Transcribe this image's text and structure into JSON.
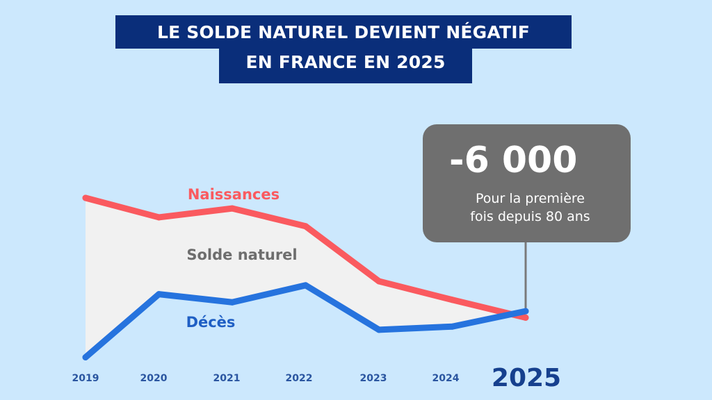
{
  "title": {
    "line1": "LE SOLDE NATUREL DEVIENT NÉGATIF",
    "line2": "EN FRANCE EN 2025"
  },
  "callout": {
    "value": "-6 000",
    "text_line1": "Pour la première",
    "text_line2": "fois depuis 80 ans"
  },
  "colors": {
    "background": "#cce8fd",
    "title_bg": "#0a2e7a",
    "naissances": "#fa5a5f",
    "deces": "#2673de",
    "area_fill": "#f1f1f1",
    "callout_bg": "#6f6f6f",
    "tick": "#2a55a0",
    "solde_label": "#6e6e6e"
  },
  "chart_data": {
    "type": "line",
    "title": "LE SOLDE NATUREL DEVIENT NÉGATIF EN FRANCE EN 2025",
    "xlabel": "",
    "ylabel": "",
    "x": [
      "2019",
      "2020",
      "2021",
      "2022",
      "2023",
      "2024",
      "2025"
    ],
    "highlight_x": "2025",
    "y_unit_note": "relative index (no y-axis shown); 2025 gap = -6 000",
    "ylim": [
      0,
      100
    ],
    "grid": false,
    "series": [
      {
        "name": "Naissances",
        "color": "#fa5a5f",
        "values": [
          100,
          88,
          93.5,
          82.5,
          48.5,
          37,
          26
        ]
      },
      {
        "name": "Décès",
        "color": "#2673de",
        "values": [
          1.5,
          40.5,
          35.5,
          46,
          18.5,
          20.5,
          30
        ]
      }
    ],
    "area_label": "Solde naturel",
    "annotation": {
      "x": "2025",
      "value": "-6 000",
      "text": "Pour la première fois depuis 80 ans"
    }
  }
}
